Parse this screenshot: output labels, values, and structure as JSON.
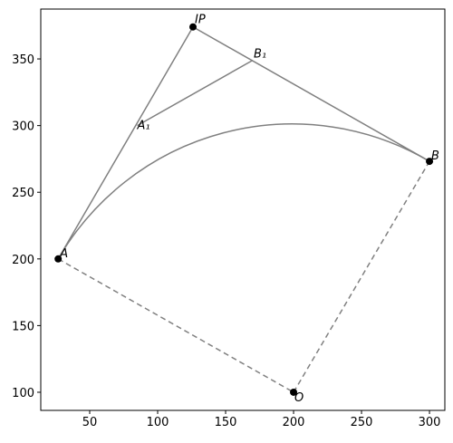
{
  "chart_data": {
    "type": "scatter",
    "points": [
      {
        "label": "A",
        "x": 26.8,
        "y": 200
      },
      {
        "label": "IP",
        "x": 126,
        "y": 374
      },
      {
        "label": "B",
        "x": 300,
        "y": 273.2
      },
      {
        "label": "O",
        "x": 200,
        "y": 100
      },
      {
        "label": "A₁",
        "x": 85,
        "y": 300
      },
      {
        "label": "B₁",
        "x": 170,
        "y": 349
      }
    ],
    "color": "#808080",
    "xlim": [
      14,
      311.3
    ],
    "ylim": [
      86.4,
      387.4
    ],
    "xticks": [
      50,
      100,
      150,
      200,
      250,
      300
    ],
    "yticks": [
      100,
      150,
      200,
      250,
      300,
      350
    ],
    "grid": true
  }
}
